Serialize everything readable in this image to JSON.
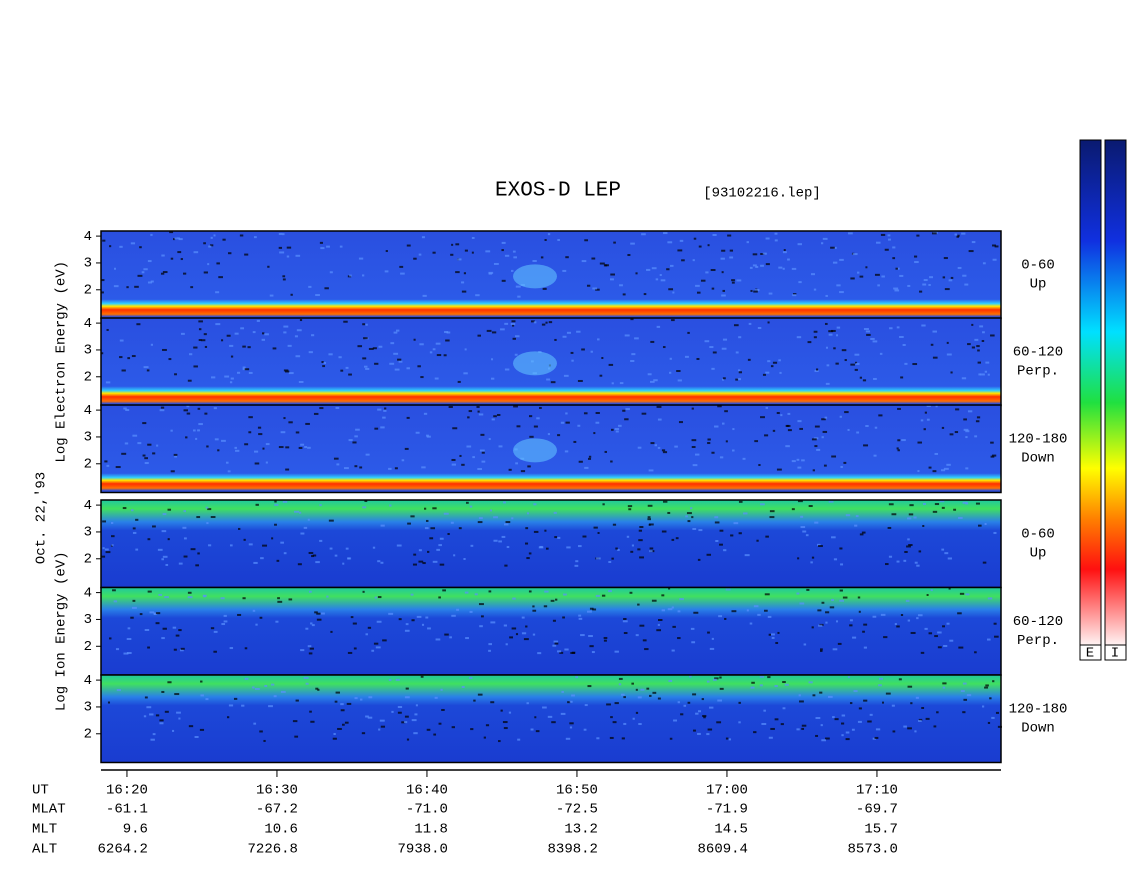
{
  "chart_data": {
    "type": "spectrogram",
    "title": "EXOS-D LEP",
    "file": "[93102216.lep]",
    "date_label": "Oct. 22,'93",
    "xlabel": "UT",
    "xlim": [
      978.27,
      1038.27
    ],
    "xticks": [
      {
        "value": 980,
        "label": "16:20"
      },
      {
        "value": 990,
        "label": "16:30"
      },
      {
        "value": 1000,
        "label": "16:40"
      },
      {
        "value": 1010,
        "label": "16:50"
      },
      {
        "value": 1020,
        "label": "17:00"
      },
      {
        "value": 1030,
        "label": "17:10"
      }
    ],
    "ylim": [
      0.93,
      4.19
    ],
    "yticks": [
      2,
      3,
      4
    ],
    "groups": [
      {
        "axis_label": "Log Electron Energy (eV)",
        "panels": [
          {
            "pitch": "0-60",
            "direction": "Up"
          },
          {
            "pitch": "60-120",
            "direction": "Perp."
          },
          {
            "pitch": "120-180",
            "direction": "Down"
          }
        ]
      },
      {
        "axis_label": "Log Ion Energy (eV)",
        "panels": [
          {
            "pitch": "0-60",
            "direction": "Up"
          },
          {
            "pitch": "60-120",
            "direction": "Perp."
          },
          {
            "pitch": "120-180",
            "direction": "Down"
          }
        ]
      }
    ],
    "orbit": [
      {
        "label": "MLAT",
        "values": [
          "-61.1",
          "-67.2",
          "-71.0",
          "-72.5",
          "-71.9",
          "-69.7"
        ]
      },
      {
        "label": "MLT",
        "values": [
          "9.6",
          "10.6",
          "11.8",
          "13.2",
          "14.5",
          "15.7"
        ]
      },
      {
        "label": "ALT",
        "values": [
          "6264.2",
          "7226.8",
          "7938.0",
          "8398.2",
          "8609.4",
          "8573.0"
        ]
      }
    ],
    "colorbar_labels": [
      "E",
      "I"
    ]
  }
}
